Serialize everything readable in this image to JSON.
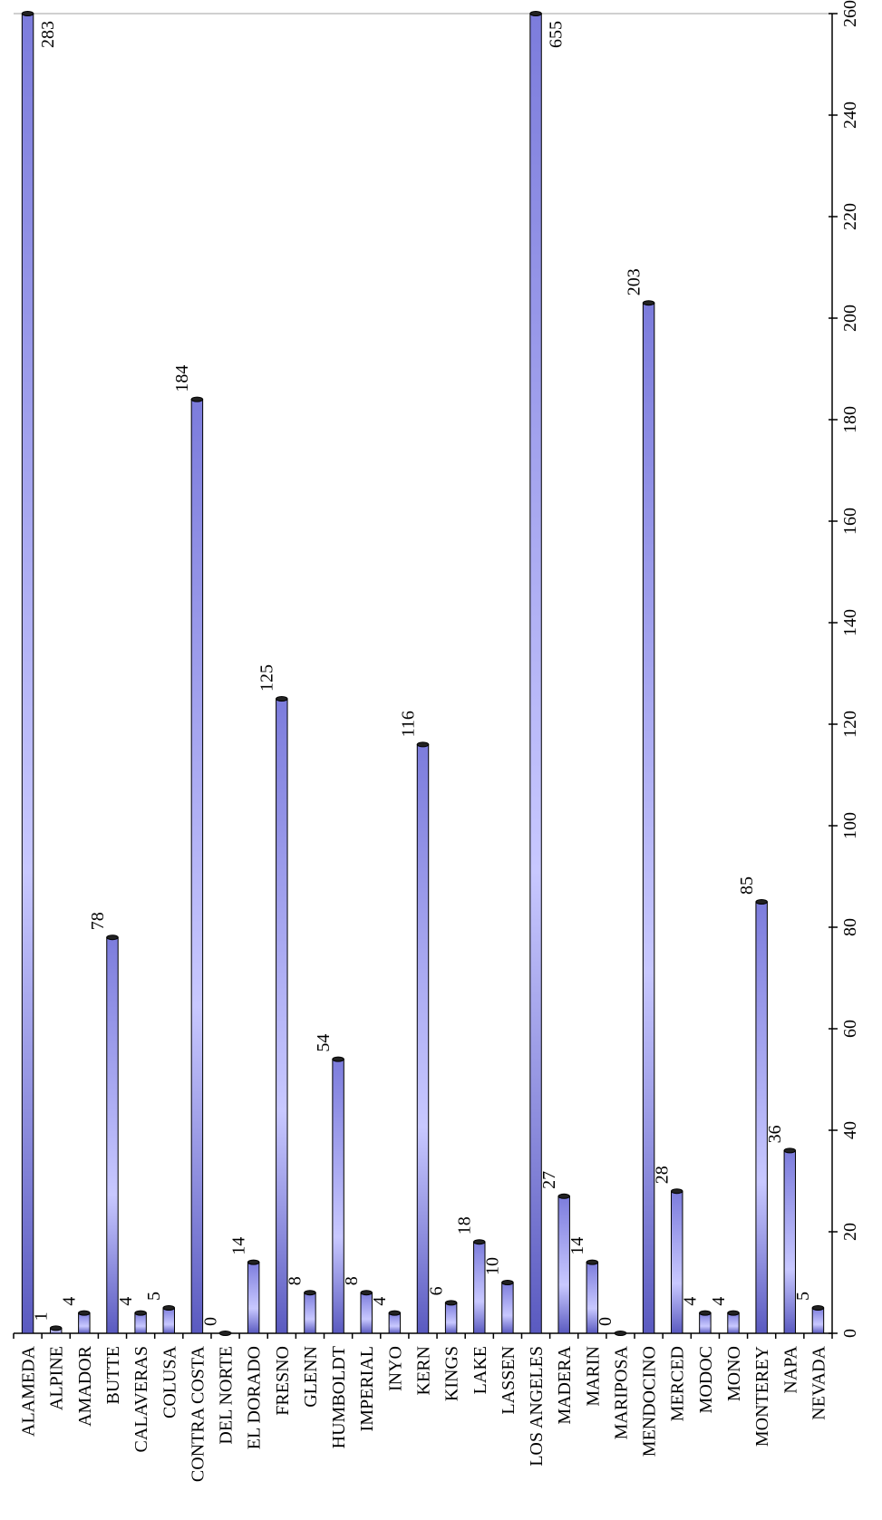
{
  "chart_data": {
    "type": "bar",
    "orientation": "rotated-90",
    "categories": [
      "ALAMEDA",
      "ALPINE",
      "AMADOR",
      "BUTTE",
      "CALAVERAS",
      "COLUSA",
      "CONTRA COSTA",
      "DEL NORTE",
      "EL DORADO",
      "FRESNO",
      "GLENN",
      "HUMBOLDT",
      "IMPERIAL",
      "INYO",
      "KERN",
      "KINGS",
      "LAKE",
      "LASSEN",
      "LOS ANGELES",
      "MADERA",
      "MARIN",
      "MARIPOSA",
      "MENDOCINO",
      "MERCED",
      "MODOC",
      "MONO",
      "MONTEREY",
      "NAPA",
      "NEVADA"
    ],
    "values": [
      283,
      1,
      4,
      78,
      4,
      5,
      184,
      0,
      14,
      125,
      8,
      54,
      8,
      4,
      116,
      6,
      18,
      10,
      655,
      27,
      14,
      0,
      203,
      28,
      4,
      4,
      85,
      36,
      5
    ],
    "value_labels": [
      "283",
      "1",
      "4",
      "78",
      "4",
      "5",
      "184",
      "0",
      "14",
      "125",
      "8",
      "54",
      "8",
      "4",
      "116",
      "6",
      "18",
      "10",
      "655",
      "27",
      "14",
      "0",
      "203",
      "28",
      "4",
      "4",
      "85",
      "36",
      "5"
    ],
    "ylim": [
      0,
      260
    ],
    "yticks": [
      0,
      20,
      40,
      60,
      80,
      100,
      120,
      140,
      160,
      180,
      200,
      220,
      240,
      260
    ],
    "ytick_labels": [
      "0",
      "20",
      "40",
      "60",
      "80",
      "100",
      "120",
      "140",
      "160",
      "180",
      "200",
      "220",
      "240",
      "260"
    ],
    "title": "",
    "xlabel": "",
    "ylabel": "",
    "grid": false,
    "legend": "none",
    "bar_color": "#9999ff",
    "bar_edge_color": "#000000"
  }
}
